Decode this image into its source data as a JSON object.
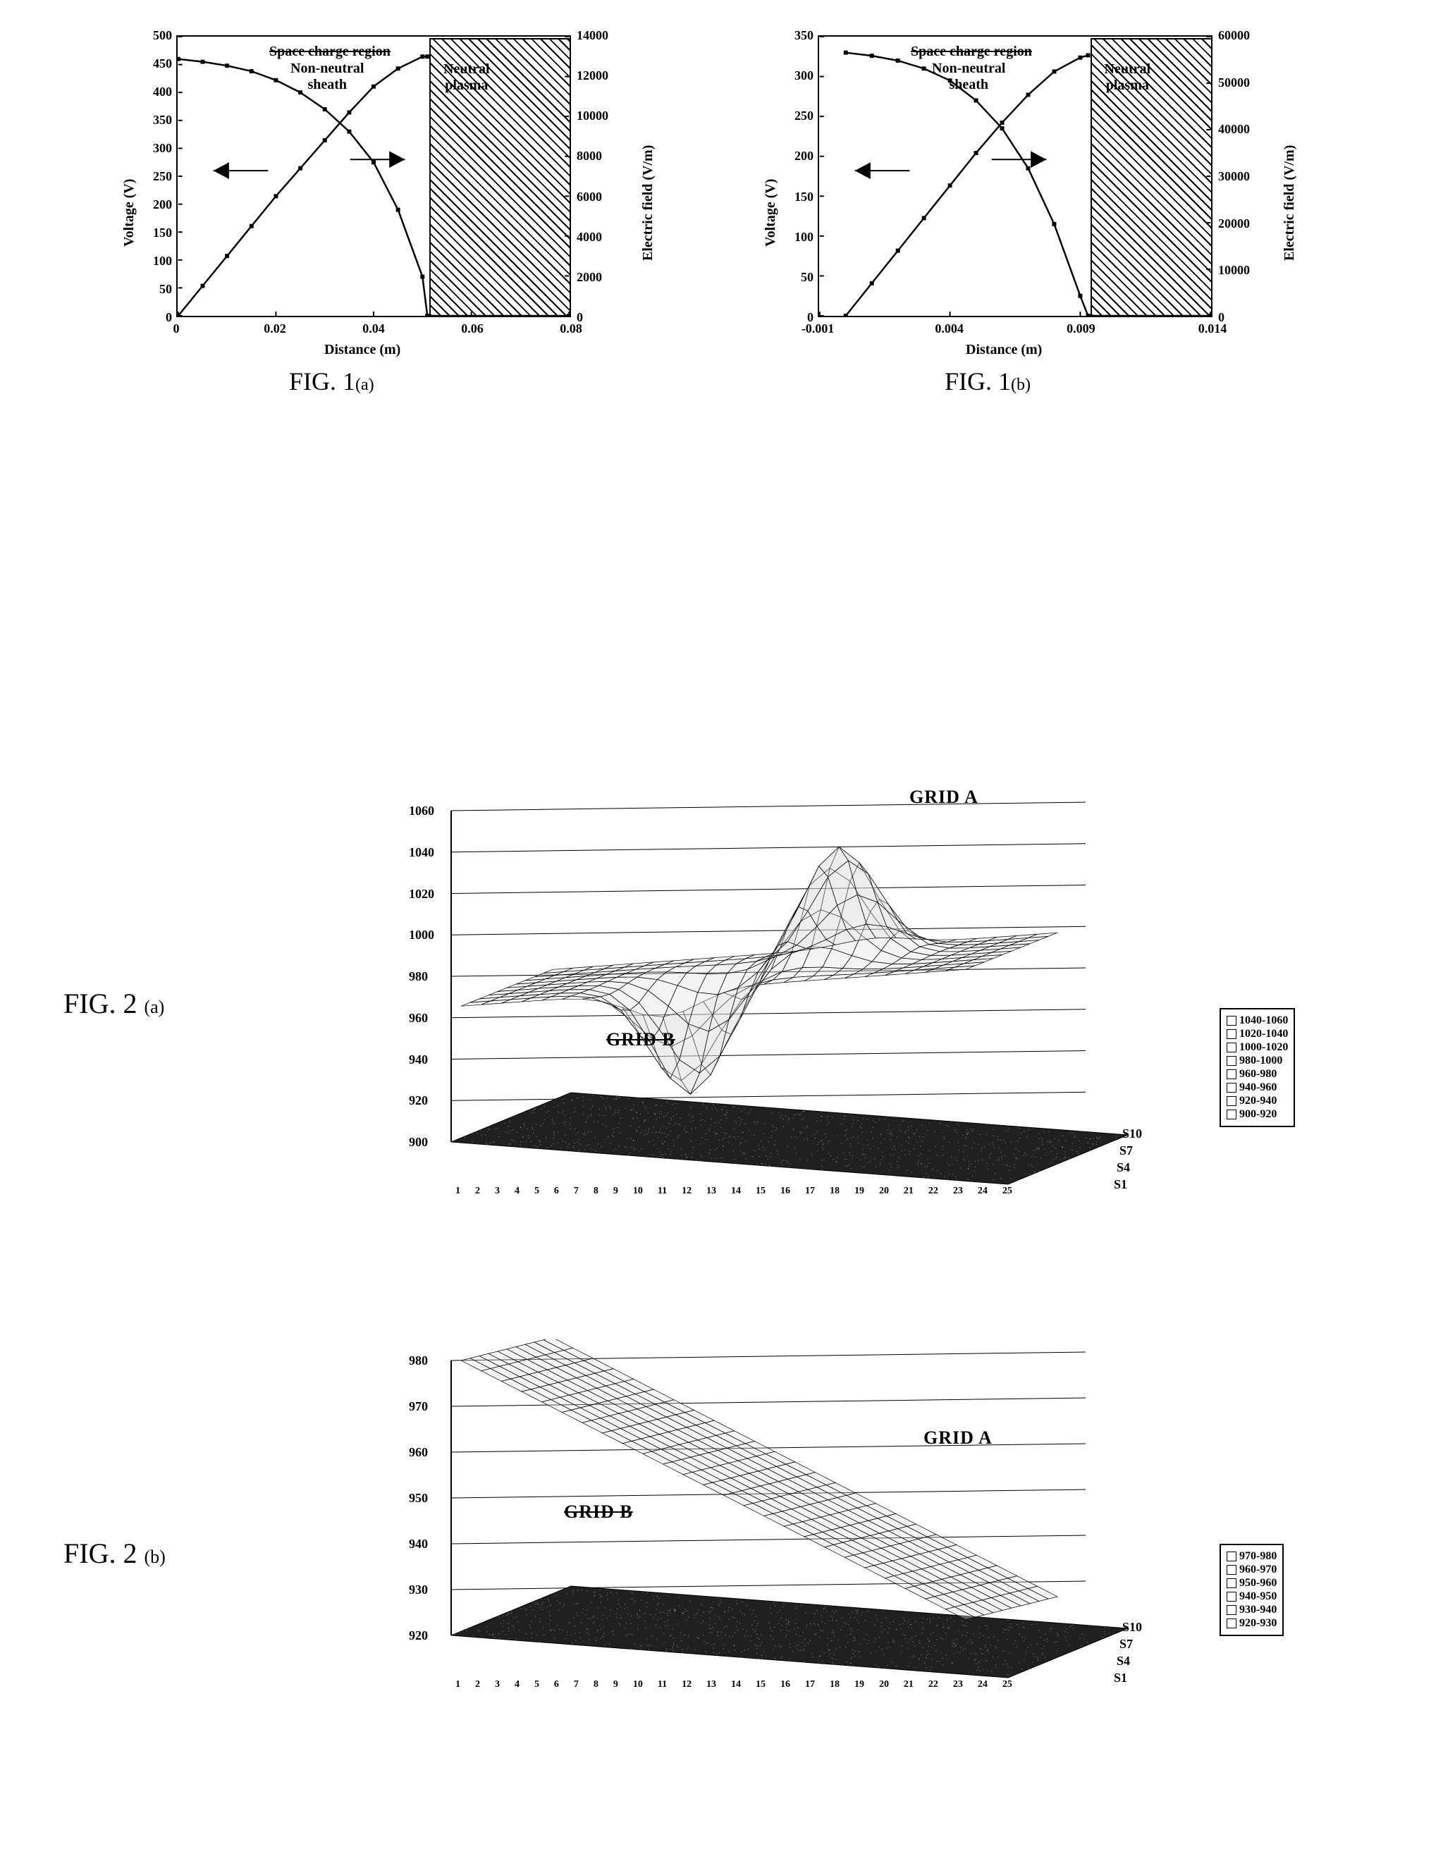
{
  "fig1a": {
    "type": "line",
    "xlim": [
      0,
      0.08
    ],
    "xticks": [
      0,
      0.02,
      0.04,
      0.06,
      0.08
    ],
    "ylim_left": [
      0,
      500
    ],
    "yticks_left": [
      0,
      50,
      100,
      150,
      200,
      250,
      300,
      350,
      400,
      450,
      500
    ],
    "ylim_right": [
      0,
      14000
    ],
    "yticks_right": [
      0,
      2000,
      4000,
      6000,
      8000,
      10000,
      12000,
      14000
    ],
    "xlabel": "Distance (m)",
    "ylabel_left": "Voltage (V)",
    "ylabel_right": "Electric field (V/m)",
    "hatched_label": "Neutral plasma",
    "hatched_x0": 0.051,
    "hatched_x1": 0.08,
    "annotation_top_strike": "Space charge region",
    "annotation_top": "Non-neutral\nsheath",
    "voltage_curve": [
      [
        0,
        460
      ],
      [
        0.005,
        455
      ],
      [
        0.01,
        448
      ],
      [
        0.015,
        438
      ],
      [
        0.02,
        422
      ],
      [
        0.025,
        400
      ],
      [
        0.03,
        370
      ],
      [
        0.035,
        330
      ],
      [
        0.04,
        275
      ],
      [
        0.045,
        190
      ],
      [
        0.05,
        70
      ],
      [
        0.051,
        0
      ],
      [
        0.08,
        0
      ]
    ],
    "efield_curve": [
      [
        0,
        0
      ],
      [
        0.005,
        1500
      ],
      [
        0.01,
        3000
      ],
      [
        0.015,
        4500
      ],
      [
        0.02,
        6000
      ],
      [
        0.025,
        7400
      ],
      [
        0.03,
        8800
      ],
      [
        0.035,
        10200
      ],
      [
        0.04,
        11500
      ],
      [
        0.045,
        12400
      ],
      [
        0.05,
        13000
      ],
      [
        0.051,
        13000
      ]
    ],
    "curve_color": "#000000",
    "grid_color": "#000000",
    "caption": "FIG. 1",
    "caption_sub": "(a)"
  },
  "fig1b": {
    "type": "line",
    "xlim": [
      -0.001,
      0.014
    ],
    "xticks": [
      -0.001,
      0.004,
      0.009,
      0.014
    ],
    "ylim_left": [
      0,
      350
    ],
    "yticks_left": [
      0,
      50,
      100,
      150,
      200,
      250,
      300,
      350
    ],
    "ylim_right": [
      0,
      60000
    ],
    "yticks_right": [
      0,
      10000,
      20000,
      30000,
      40000,
      50000,
      60000
    ],
    "xlabel": "Distance (m)",
    "ylabel_left": "Voltage (V)",
    "ylabel_right": "Electric field (V/m)",
    "hatched_label": "Neutral plasma",
    "hatched_x0": 0.0093,
    "hatched_x1": 0.014,
    "annotation_top_strike": "Space charge region",
    "annotation_top": "Non-neutral\nsheath",
    "voltage_curve": [
      [
        0,
        330
      ],
      [
        0.001,
        326
      ],
      [
        0.002,
        320
      ],
      [
        0.003,
        310
      ],
      [
        0.004,
        295
      ],
      [
        0.005,
        270
      ],
      [
        0.006,
        235
      ],
      [
        0.007,
        185
      ],
      [
        0.008,
        115
      ],
      [
        0.009,
        25
      ],
      [
        0.0093,
        0
      ],
      [
        0.014,
        0
      ]
    ],
    "efield_curve": [
      [
        0,
        0
      ],
      [
        0.001,
        7000
      ],
      [
        0.002,
        14000
      ],
      [
        0.003,
        21000
      ],
      [
        0.004,
        28000
      ],
      [
        0.005,
        35000
      ],
      [
        0.006,
        41500
      ],
      [
        0.007,
        47500
      ],
      [
        0.008,
        52500
      ],
      [
        0.009,
        55500
      ],
      [
        0.0093,
        56000
      ]
    ],
    "curve_color": "#000000",
    "caption": "FIG. 1",
    "caption_sub": "(b)"
  },
  "fig2a": {
    "type": "surface",
    "zlim": [
      900,
      1060
    ],
    "zticks": [
      900,
      920,
      940,
      960,
      980,
      1000,
      1020,
      1040,
      1060
    ],
    "xticks": [
      1,
      2,
      3,
      4,
      5,
      6,
      7,
      8,
      9,
      10,
      11,
      12,
      13,
      14,
      15,
      16,
      17,
      18,
      19,
      20,
      21,
      22,
      23,
      24,
      25
    ],
    "yticks": [
      "S1",
      "S4",
      "S7",
      "S10"
    ],
    "grid_a_label": "GRID A",
    "grid_b_label": "GRID B",
    "legend": [
      "1040-1060",
      "1020-1040",
      "1000-1020",
      "980-1000",
      "960-980",
      "940-960",
      "920-940",
      "900-920"
    ],
    "caption": "FIG. 2",
    "caption_sub": "(a)",
    "surface_color": "#e0e0e0",
    "mesh_color": "#000000",
    "floor_color": "#202020"
  },
  "fig2b": {
    "type": "surface",
    "zlim": [
      920,
      980
    ],
    "zticks": [
      920,
      930,
      940,
      950,
      960,
      970,
      980
    ],
    "xticks": [
      1,
      2,
      3,
      4,
      5,
      6,
      7,
      8,
      9,
      10,
      11,
      12,
      13,
      14,
      15,
      16,
      17,
      18,
      19,
      20,
      21,
      22,
      23,
      24,
      25
    ],
    "yticks": [
      "S1",
      "S4",
      "S7",
      "S10"
    ],
    "grid_a_label": "GRID A",
    "grid_b_label": "GRID B",
    "legend": [
      "970-980",
      "960-970",
      "950-960",
      "940-950",
      "930-940",
      "920-930"
    ],
    "caption": "FIG. 2",
    "caption_sub": "(b)",
    "surface_color": "#e0e0e0",
    "mesh_color": "#000000",
    "floor_color": "#202020"
  }
}
